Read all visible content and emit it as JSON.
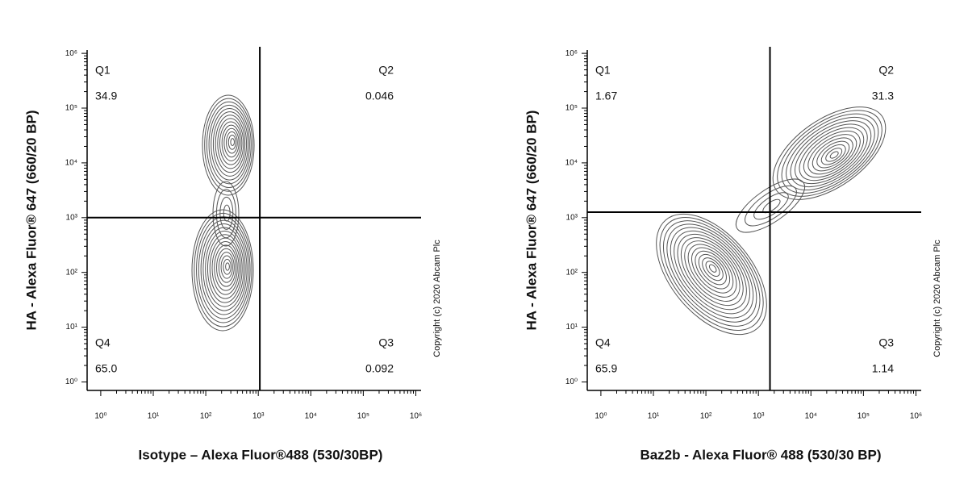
{
  "chart_data": [
    {
      "type": "contour",
      "x_label": "Isotype – Alexa Fluor®488 (530/30BP)",
      "y_label": "HA - Alexa Fluor® 647 (660/20 BP)",
      "copyright": "Copyright (c) 2020 Abcam Plc",
      "xscale": "log",
      "yscale": "log",
      "xlim": [
        0.55,
        1260000
      ],
      "ylim": [
        0.7,
        1150000
      ],
      "xticks": [
        {
          "value": 1,
          "label": "10⁰"
        },
        {
          "value": 10,
          "label": "10¹"
        },
        {
          "value": 100,
          "label": "10²"
        },
        {
          "value": 1000,
          "label": "10³"
        },
        {
          "value": 10000,
          "label": "10⁴"
        },
        {
          "value": 100000,
          "label": "10⁵"
        },
        {
          "value": 1000000,
          "label": "10⁶"
        }
      ],
      "yticks": [
        {
          "value": 1,
          "label": "10⁰"
        },
        {
          "value": 10,
          "label": "10¹"
        },
        {
          "value": 100,
          "label": "10²"
        },
        {
          "value": 1000,
          "label": "10³"
        },
        {
          "value": 10000,
          "label": "10⁴"
        },
        {
          "value": 100000,
          "label": "10⁵"
        },
        {
          "value": 1000000,
          "label": "10⁶"
        }
      ],
      "gate_x": 1070,
      "gate_y": 1000,
      "quadrants": [
        "Q1",
        "Q2",
        "Q3",
        "Q4"
      ],
      "values": [
        34.9,
        0.046,
        0.092,
        65.0
      ],
      "value_labels": [
        "34.9",
        "0.046",
        "0.092",
        "65.0"
      ]
    },
    {
      "type": "contour",
      "x_label": "Baz2b - Alexa Fluor® 488 (530/30 BP)",
      "y_label": "HA - Alexa Fluor® 647 (660/20 BP)",
      "copyright": "Copyright (c) 2020 Abcam Plc",
      "xscale": "log",
      "yscale": "log",
      "xlim": [
        0.55,
        1260000
      ],
      "ylim": [
        0.7,
        1150000
      ],
      "xticks": [
        {
          "value": 1,
          "label": "10⁰"
        },
        {
          "value": 10,
          "label": "10¹"
        },
        {
          "value": 100,
          "label": "10²"
        },
        {
          "value": 1000,
          "label": "10³"
        },
        {
          "value": 10000,
          "label": "10⁴"
        },
        {
          "value": 100000,
          "label": "10⁵"
        },
        {
          "value": 1000000,
          "label": "10⁶"
        }
      ],
      "yticks": [
        {
          "value": 1,
          "label": "10⁰"
        },
        {
          "value": 10,
          "label": "10¹"
        },
        {
          "value": 100,
          "label": "10²"
        },
        {
          "value": 1000,
          "label": "10³"
        },
        {
          "value": 10000,
          "label": "10⁴"
        },
        {
          "value": 100000,
          "label": "10⁵"
        },
        {
          "value": 1000000,
          "label": "10⁶"
        }
      ],
      "gate_x": 1660,
      "gate_y": 1260,
      "quadrants": [
        "Q1",
        "Q2",
        "Q3",
        "Q4"
      ],
      "values": [
        1.67,
        31.3,
        1.14,
        65.9
      ],
      "value_labels": [
        "1.67",
        "31.3",
        "1.14",
        "65.9"
      ]
    }
  ]
}
